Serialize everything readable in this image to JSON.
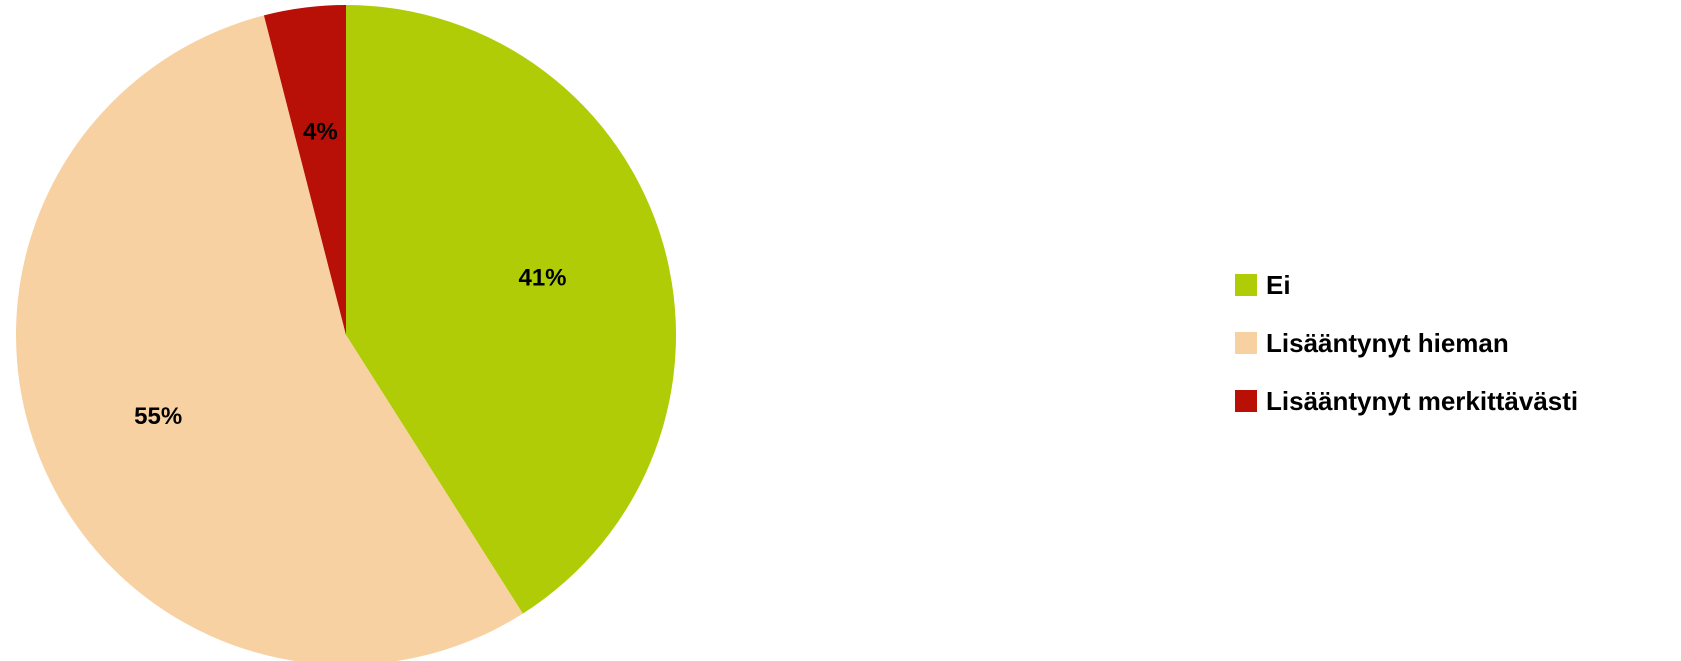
{
  "chart_data": {
    "type": "pie",
    "categories": [
      "Ei",
      "Lisääntynyt hieman",
      "Lisääntynyt merkittävästi"
    ],
    "values": [
      41,
      55,
      4
    ],
    "data_labels": [
      "41%",
      "55%",
      "4%"
    ],
    "colors": [
      "#B0CC07",
      "#F8D1A2",
      "#B80F06"
    ],
    "legend_position": "right",
    "start_angle_deg": 0,
    "direction": "clockwise"
  }
}
